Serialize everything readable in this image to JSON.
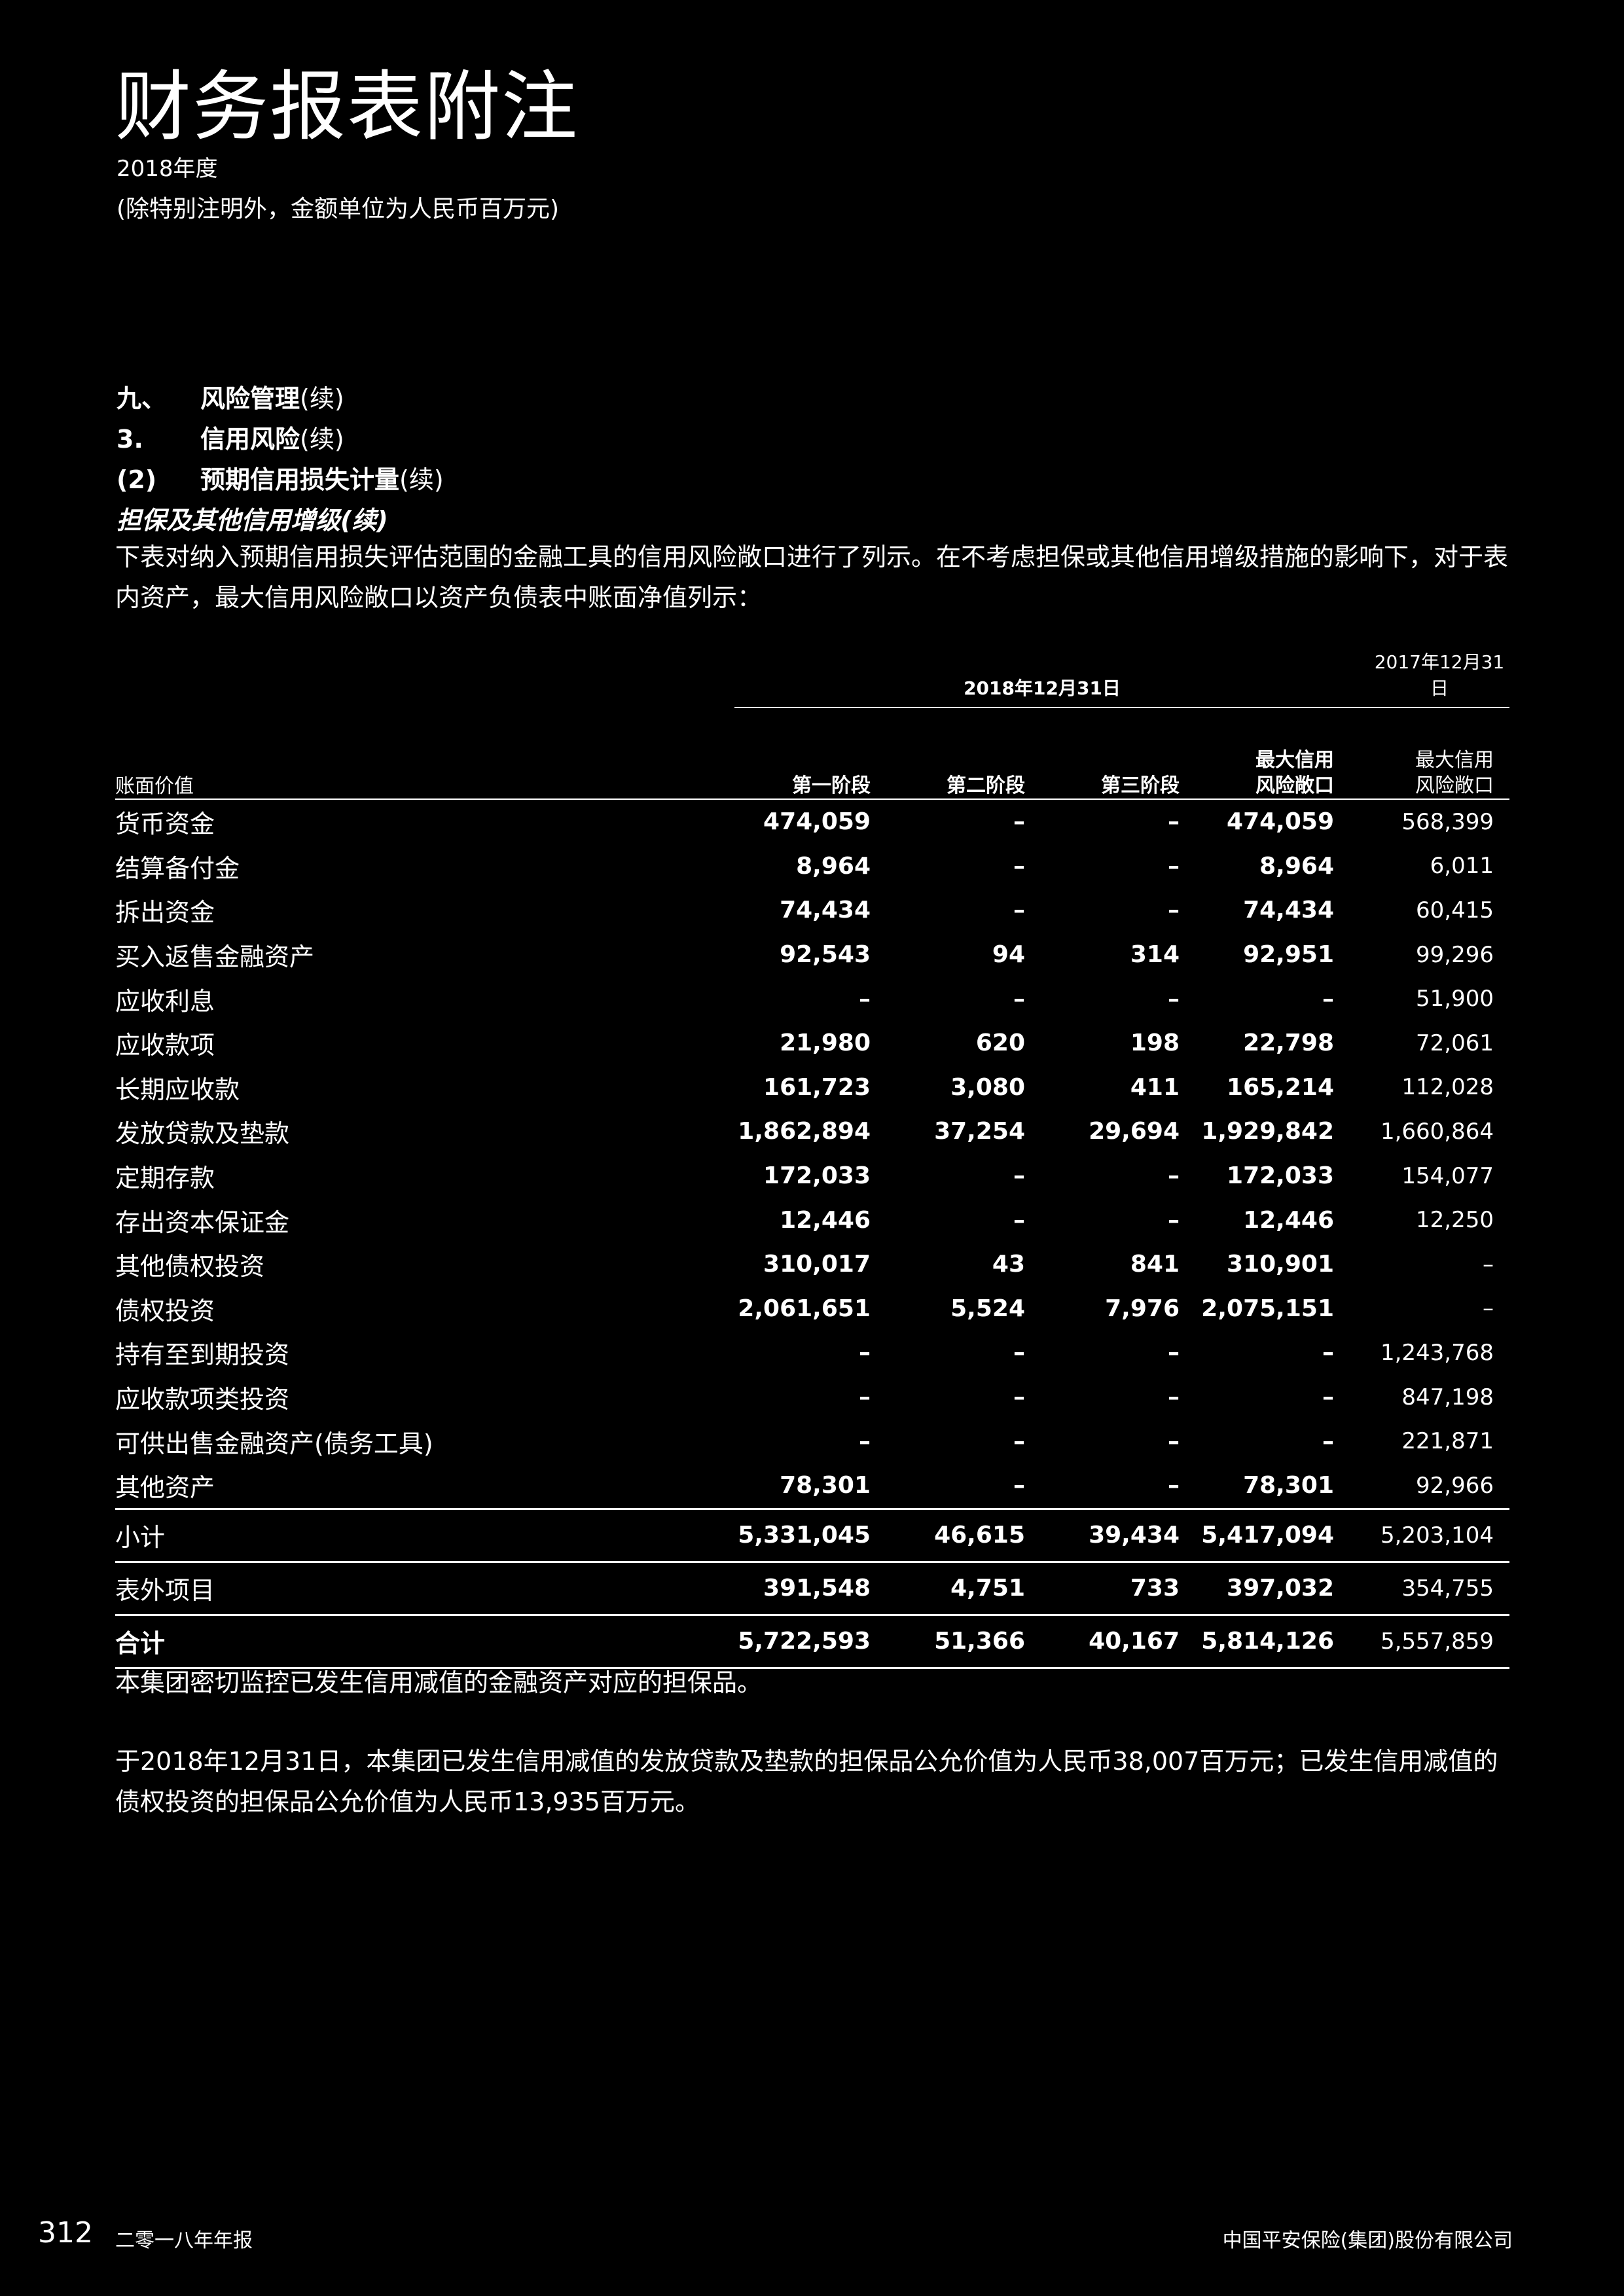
{
  "page": {
    "title": "财务报表附注",
    "year": "2018年度",
    "unit_note": "(除特别注明外，金额单位为人民币百万元)"
  },
  "sections": {
    "s1_num": "九、",
    "s1_title": "风险管理",
    "s1_suffix": "(续)",
    "s2_num": "3.",
    "s2_title": "信用风险",
    "s2_suffix": "(续)",
    "s3_num": "(2)",
    "s3_title": "预期信用损失计量",
    "s3_suffix": "(续)",
    "s4_title": "担保及其他信用增级(续)"
  },
  "intro": "下表对纳入预期信用损失评估范围的金融工具的信用风险敞口进行了列示。在不考虑担保或其他信用增级措施的影响下，对于表内资产，最大信用风险敞口以资产负债表中账面净值列示：",
  "table": {
    "group1": "2018年12月31日",
    "group2": "2017年12月31日",
    "label_header": "账面价值",
    "col1": "第一阶段",
    "col2": "第二阶段",
    "col3": "第三阶段",
    "col4_l1": "最大信用",
    "col4_l2": "风险敞口",
    "col5_l1": "最大信用",
    "col5_l2": "风险敞口",
    "rows": [
      {
        "label": "货币资金",
        "c1": "474,059",
        "c2": "–",
        "c3": "–",
        "c4": "474,059",
        "c5": "568,399"
      },
      {
        "label": "结算备付金",
        "c1": "8,964",
        "c2": "–",
        "c3": "–",
        "c4": "8,964",
        "c5": "6,011"
      },
      {
        "label": "拆出资金",
        "c1": "74,434",
        "c2": "–",
        "c3": "–",
        "c4": "74,434",
        "c5": "60,415"
      },
      {
        "label": "买入返售金融资产",
        "c1": "92,543",
        "c2": "94",
        "c3": "314",
        "c4": "92,951",
        "c5": "99,296"
      },
      {
        "label": "应收利息",
        "c1": "–",
        "c2": "–",
        "c3": "–",
        "c4": "–",
        "c5": "51,900"
      },
      {
        "label": "应收款项",
        "c1": "21,980",
        "c2": "620",
        "c3": "198",
        "c4": "22,798",
        "c5": "72,061"
      },
      {
        "label": "长期应收款",
        "c1": "161,723",
        "c2": "3,080",
        "c3": "411",
        "c4": "165,214",
        "c5": "112,028"
      },
      {
        "label": "发放贷款及垫款",
        "c1": "1,862,894",
        "c2": "37,254",
        "c3": "29,694",
        "c4": "1,929,842",
        "c5": "1,660,864"
      },
      {
        "label": "定期存款",
        "c1": "172,033",
        "c2": "–",
        "c3": "–",
        "c4": "172,033",
        "c5": "154,077"
      },
      {
        "label": "存出资本保证金",
        "c1": "12,446",
        "c2": "–",
        "c3": "–",
        "c4": "12,446",
        "c5": "12,250"
      },
      {
        "label": "其他债权投资",
        "c1": "310,017",
        "c2": "43",
        "c3": "841",
        "c4": "310,901",
        "c5": "–"
      },
      {
        "label": "债权投资",
        "c1": "2,061,651",
        "c2": "5,524",
        "c3": "7,976",
        "c4": "2,075,151",
        "c5": "–"
      },
      {
        "label": "持有至到期投资",
        "c1": "–",
        "c2": "–",
        "c3": "–",
        "c4": "–",
        "c5": "1,243,768"
      },
      {
        "label": "应收款项类投资",
        "c1": "–",
        "c2": "–",
        "c3": "–",
        "c4": "–",
        "c5": "847,198"
      },
      {
        "label": "可供出售金融资产(债务工具)",
        "c1": "–",
        "c2": "–",
        "c3": "–",
        "c4": "–",
        "c5": "221,871"
      },
      {
        "label": "其他资产",
        "c1": "78,301",
        "c2": "–",
        "c3": "–",
        "c4": "78,301",
        "c5": "92,966"
      }
    ],
    "subtotal": {
      "label": "小计",
      "c1": "5,331,045",
      "c2": "46,615",
      "c3": "39,434",
      "c4": "5,417,094",
      "c5": "5,203,104"
    },
    "offbalance": {
      "label": "表外项目",
      "c1": "391,548",
      "c2": "4,751",
      "c3": "733",
      "c4": "397,032",
      "c5": "354,755"
    },
    "total": {
      "label": "合计",
      "c1": "5,722,593",
      "c2": "51,366",
      "c3": "40,167",
      "c4": "5,814,126",
      "c5": "5,557,859"
    }
  },
  "notes": {
    "n1": "本集团密切监控已发生信用减值的金融资产对应的担保品。",
    "n2": "于2018年12月31日，本集团已发生信用减值的发放贷款及垫款的担保品公允价值为人民币38,007百万元；已发生信用减值的债权投资的担保品公允价值为人民币13,935百万元。"
  },
  "footer": {
    "page_number": "312",
    "report_name": "二零一八年年报",
    "company": "中国平安保险(集团)股份有限公司"
  }
}
